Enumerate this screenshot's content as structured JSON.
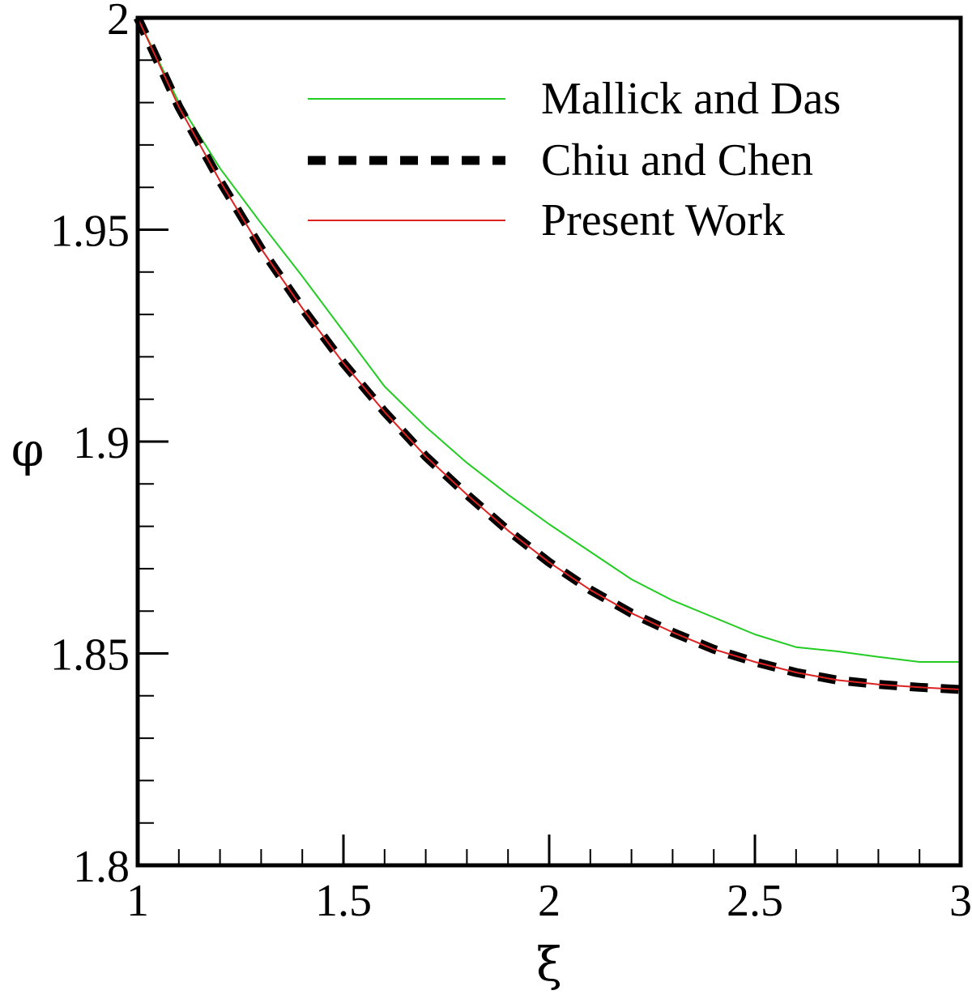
{
  "chart_data": {
    "type": "line",
    "xlabel": "ξ",
    "ylabel": "φ",
    "xlim": [
      1,
      3
    ],
    "ylim": [
      1.8,
      2
    ],
    "x_ticks": [
      1,
      1.5,
      2,
      2.5,
      3
    ],
    "x_tick_labels": [
      "1",
      "1.5",
      "2",
      "2.5",
      "3"
    ],
    "x_minor_step": 0.1,
    "y_ticks": [
      1.8,
      1.85,
      1.9,
      1.95,
      2
    ],
    "y_tick_labels": [
      "1.8",
      "1.85",
      "1.9",
      "1.95",
      "2"
    ],
    "y_minor_step": 0.01,
    "grid": false,
    "legend_position": "top-right",
    "series": [
      {
        "name": "Mallick and Das",
        "color": "#22cc22",
        "style": "solid",
        "x": [
          1,
          1.1,
          1.2,
          1.3,
          1.4,
          1.5,
          1.6,
          1.7,
          1.8,
          1.9,
          2,
          2.1,
          2.2,
          2.3,
          2.4,
          2.5,
          2.6,
          2.7,
          2.8,
          2.9,
          3
        ],
        "y": [
          2,
          1.98,
          1.9645,
          1.9515,
          1.939,
          1.926,
          1.913,
          1.9035,
          1.895,
          1.8875,
          1.8805,
          1.874,
          1.8675,
          1.8625,
          1.8585,
          1.8545,
          1.8515,
          1.8505,
          1.8492,
          1.848,
          1.848
        ]
      },
      {
        "name": "Chiu and Chen",
        "color": "#000000",
        "style": "dashed",
        "x": [
          1,
          1.1,
          1.2,
          1.3,
          1.4,
          1.5,
          1.6,
          1.7,
          1.8,
          1.9,
          2,
          2.1,
          2.2,
          2.3,
          2.4,
          2.5,
          2.6,
          2.7,
          2.8,
          2.9,
          3
        ],
        "y": [
          2,
          1.979,
          1.9615,
          1.9455,
          1.9315,
          1.9185,
          1.907,
          1.8965,
          1.8875,
          1.879,
          1.8715,
          1.865,
          1.8595,
          1.855,
          1.851,
          1.848,
          1.8455,
          1.8437,
          1.8427,
          1.842,
          1.8415
        ]
      },
      {
        "name": "Present Work",
        "color": "#dd2222",
        "style": "solid",
        "x": [
          1,
          1.1,
          1.2,
          1.3,
          1.4,
          1.5,
          1.6,
          1.7,
          1.8,
          1.9,
          2,
          2.1,
          2.2,
          2.3,
          2.4,
          2.5,
          2.6,
          2.7,
          2.8,
          2.9,
          3
        ],
        "y": [
          2,
          1.979,
          1.9615,
          1.9455,
          1.9315,
          1.9185,
          1.907,
          1.8965,
          1.8875,
          1.879,
          1.8715,
          1.865,
          1.8595,
          1.855,
          1.851,
          1.848,
          1.8455,
          1.8437,
          1.8427,
          1.842,
          1.8415
        ]
      }
    ]
  }
}
